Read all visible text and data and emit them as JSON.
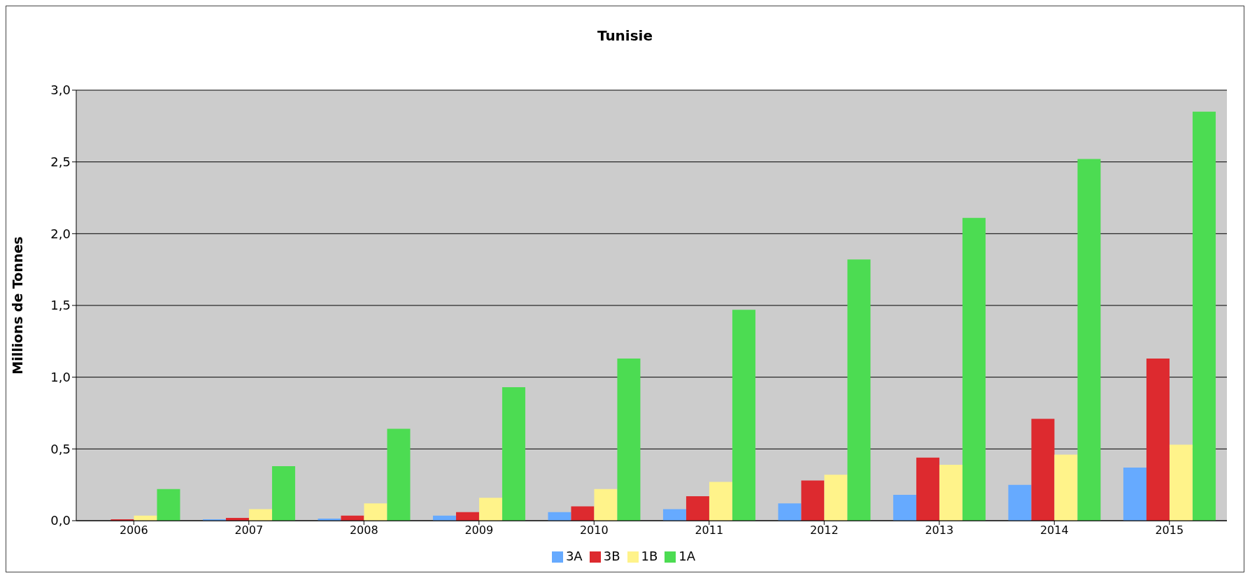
{
  "chart_data": {
    "type": "bar",
    "title": "Tunisie",
    "ylabel": "Millions de Tonnes",
    "categories": [
      "2006",
      "2007",
      "2008",
      "2009",
      "2010",
      "2011",
      "2012",
      "2013",
      "2014",
      "2015"
    ],
    "series": [
      {
        "name": "3A",
        "color": "#66aaff",
        "values": [
          null,
          0.01,
          0.015,
          0.035,
          0.06,
          0.08,
          0.12,
          0.18,
          0.25,
          0.37
        ]
      },
      {
        "name": "3B",
        "color": "#dd2a2f",
        "values": [
          0.01,
          0.02,
          0.035,
          0.06,
          0.1,
          0.17,
          0.28,
          0.44,
          0.71,
          1.13
        ]
      },
      {
        "name": "1B",
        "color": "#fff38a",
        "values": [
          0.035,
          0.08,
          0.12,
          0.16,
          0.22,
          0.27,
          0.32,
          0.39,
          0.46,
          0.53
        ]
      },
      {
        "name": "1A",
        "color": "#4cdc52",
        "values": [
          0.22,
          0.38,
          0.64,
          0.93,
          1.13,
          1.47,
          1.82,
          2.11,
          2.52,
          2.85
        ]
      }
    ],
    "ylim": [
      0,
      3
    ],
    "yticks": [
      {
        "value": 0,
        "label": "0,0"
      },
      {
        "value": 0.5,
        "label": "0,5"
      },
      {
        "value": 1,
        "label": "1,0"
      },
      {
        "value": 1.5,
        "label": "1,5"
      },
      {
        "value": 2,
        "label": "2,0"
      },
      {
        "value": 2.5,
        "label": "2,5"
      },
      {
        "value": 3,
        "label": "3,0"
      }
    ],
    "grid": "y",
    "legend": "bottom"
  }
}
